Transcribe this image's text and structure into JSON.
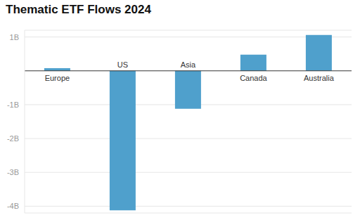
{
  "chart_data": {
    "type": "bar",
    "title": "Thematic ETF Flows 2024",
    "categories": [
      "Europe",
      "US",
      "Asia",
      "Canada",
      "Australia"
    ],
    "values": [
      0.08,
      -4.12,
      -1.12,
      0.48,
      1.06
    ],
    "color": "#4fa0cc",
    "ylim": [
      -4.2,
      1.2
    ],
    "yticks": [
      {
        "value": 1,
        "label": "1B"
      },
      {
        "value": -1,
        "label": "-1B"
      },
      {
        "value": -2,
        "label": "-2B"
      },
      {
        "value": -3,
        "label": "-3B"
      },
      {
        "value": -4,
        "label": "-4B"
      }
    ],
    "grid": true
  }
}
